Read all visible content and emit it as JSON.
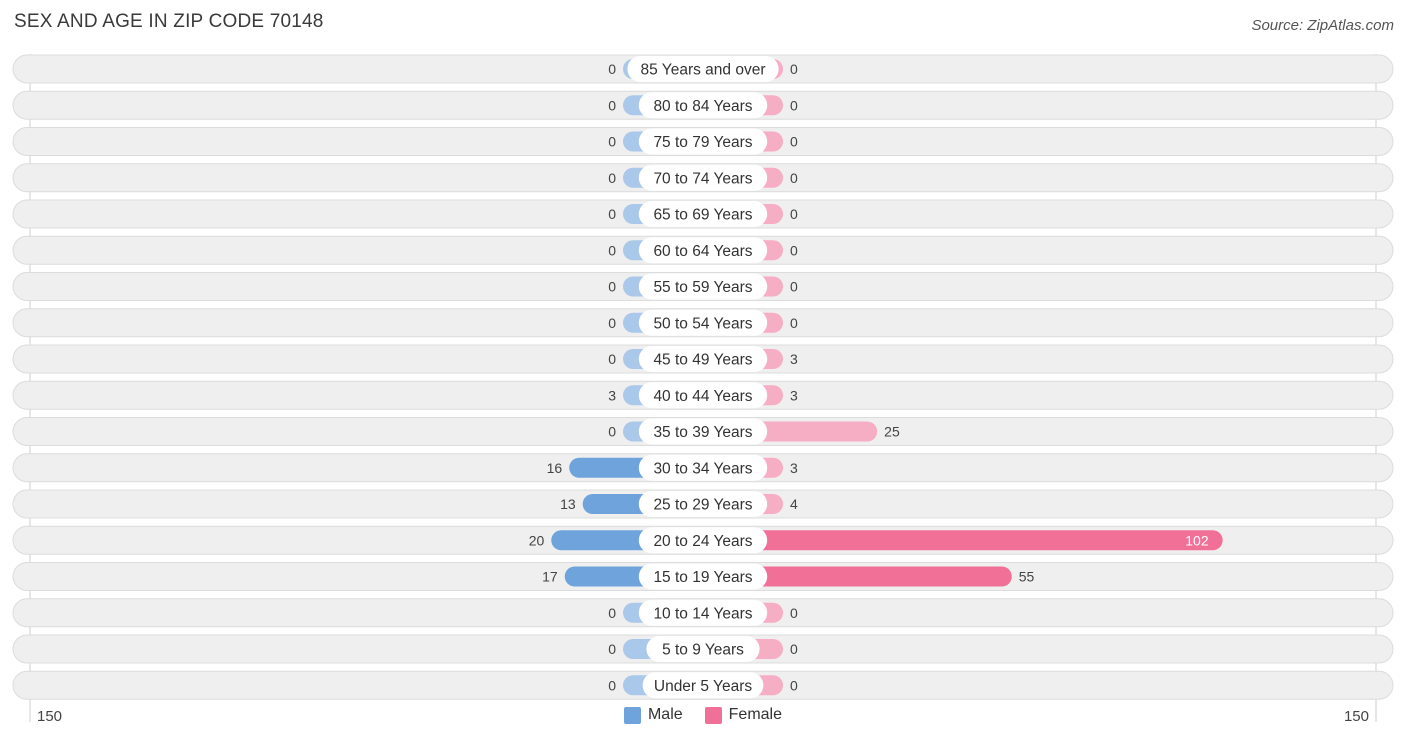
{
  "title": "SEX AND AGE IN ZIP CODE 70148",
  "source": "Source: ZipAtlas.com",
  "colors": {
    "male": "#aac8ea",
    "male_strong": "#6fa3dc",
    "female": "#f6aec5",
    "female_strong": "#f07098",
    "row_bg": "#efefef",
    "row_border": "#dcdcdc"
  },
  "axis": {
    "left_label": "150",
    "right_label": "150"
  },
  "legend": [
    {
      "label": "Male",
      "color": "#6fa3dc"
    },
    {
      "label": "Female",
      "color": "#f07098"
    }
  ],
  "chart_data": {
    "type": "bar",
    "orientation": "horizontal-butterfly",
    "categories": [
      "85 Years and over",
      "80 to 84 Years",
      "75 to 79 Years",
      "70 to 74 Years",
      "65 to 69 Years",
      "60 to 64 Years",
      "55 to 59 Years",
      "50 to 54 Years",
      "45 to 49 Years",
      "40 to 44 Years",
      "35 to 39 Years",
      "30 to 34 Years",
      "25 to 29 Years",
      "20 to 24 Years",
      "15 to 19 Years",
      "10 to 14 Years",
      "5 to 9 Years",
      "Under 5 Years"
    ],
    "series": [
      {
        "name": "Male",
        "values": [
          0,
          0,
          0,
          0,
          0,
          0,
          0,
          0,
          0,
          3,
          0,
          16,
          13,
          20,
          17,
          0,
          0,
          0
        ]
      },
      {
        "name": "Female",
        "values": [
          0,
          0,
          0,
          0,
          0,
          0,
          0,
          0,
          3,
          3,
          25,
          3,
          4,
          102,
          55,
          0,
          0,
          0
        ]
      }
    ],
    "xlim": [
      -150,
      150
    ],
    "legend_position": "bottom-center"
  }
}
